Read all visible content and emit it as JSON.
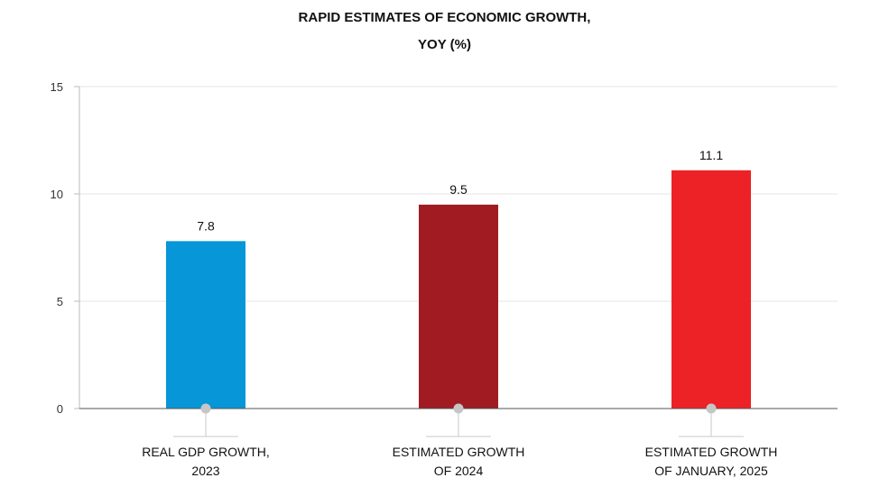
{
  "chart_data": {
    "type": "bar",
    "title_lines": [
      "RAPID ESTIMATES OF ECONOMIC GROWTH,",
      "YOY (%)"
    ],
    "categories": [
      [
        "REAL GDP GROWTH,",
        "2023"
      ],
      [
        "ESTIMATED GROWTH",
        "OF 2024"
      ],
      [
        "ESTIMATED GROWTH",
        "OF JANUARY, 2025"
      ]
    ],
    "values": [
      7.8,
      9.5,
      11.1
    ],
    "value_labels": [
      "7.8",
      "9.5",
      "11.1"
    ],
    "colors": [
      "#0796d8",
      "#a01c22",
      "#ed2226"
    ],
    "ylim": [
      0,
      15
    ],
    "yticks": [
      0,
      5,
      10,
      15
    ],
    "ytick_labels": [
      "0",
      "5",
      "10",
      "15"
    ],
    "grid": true,
    "legend": "none"
  }
}
